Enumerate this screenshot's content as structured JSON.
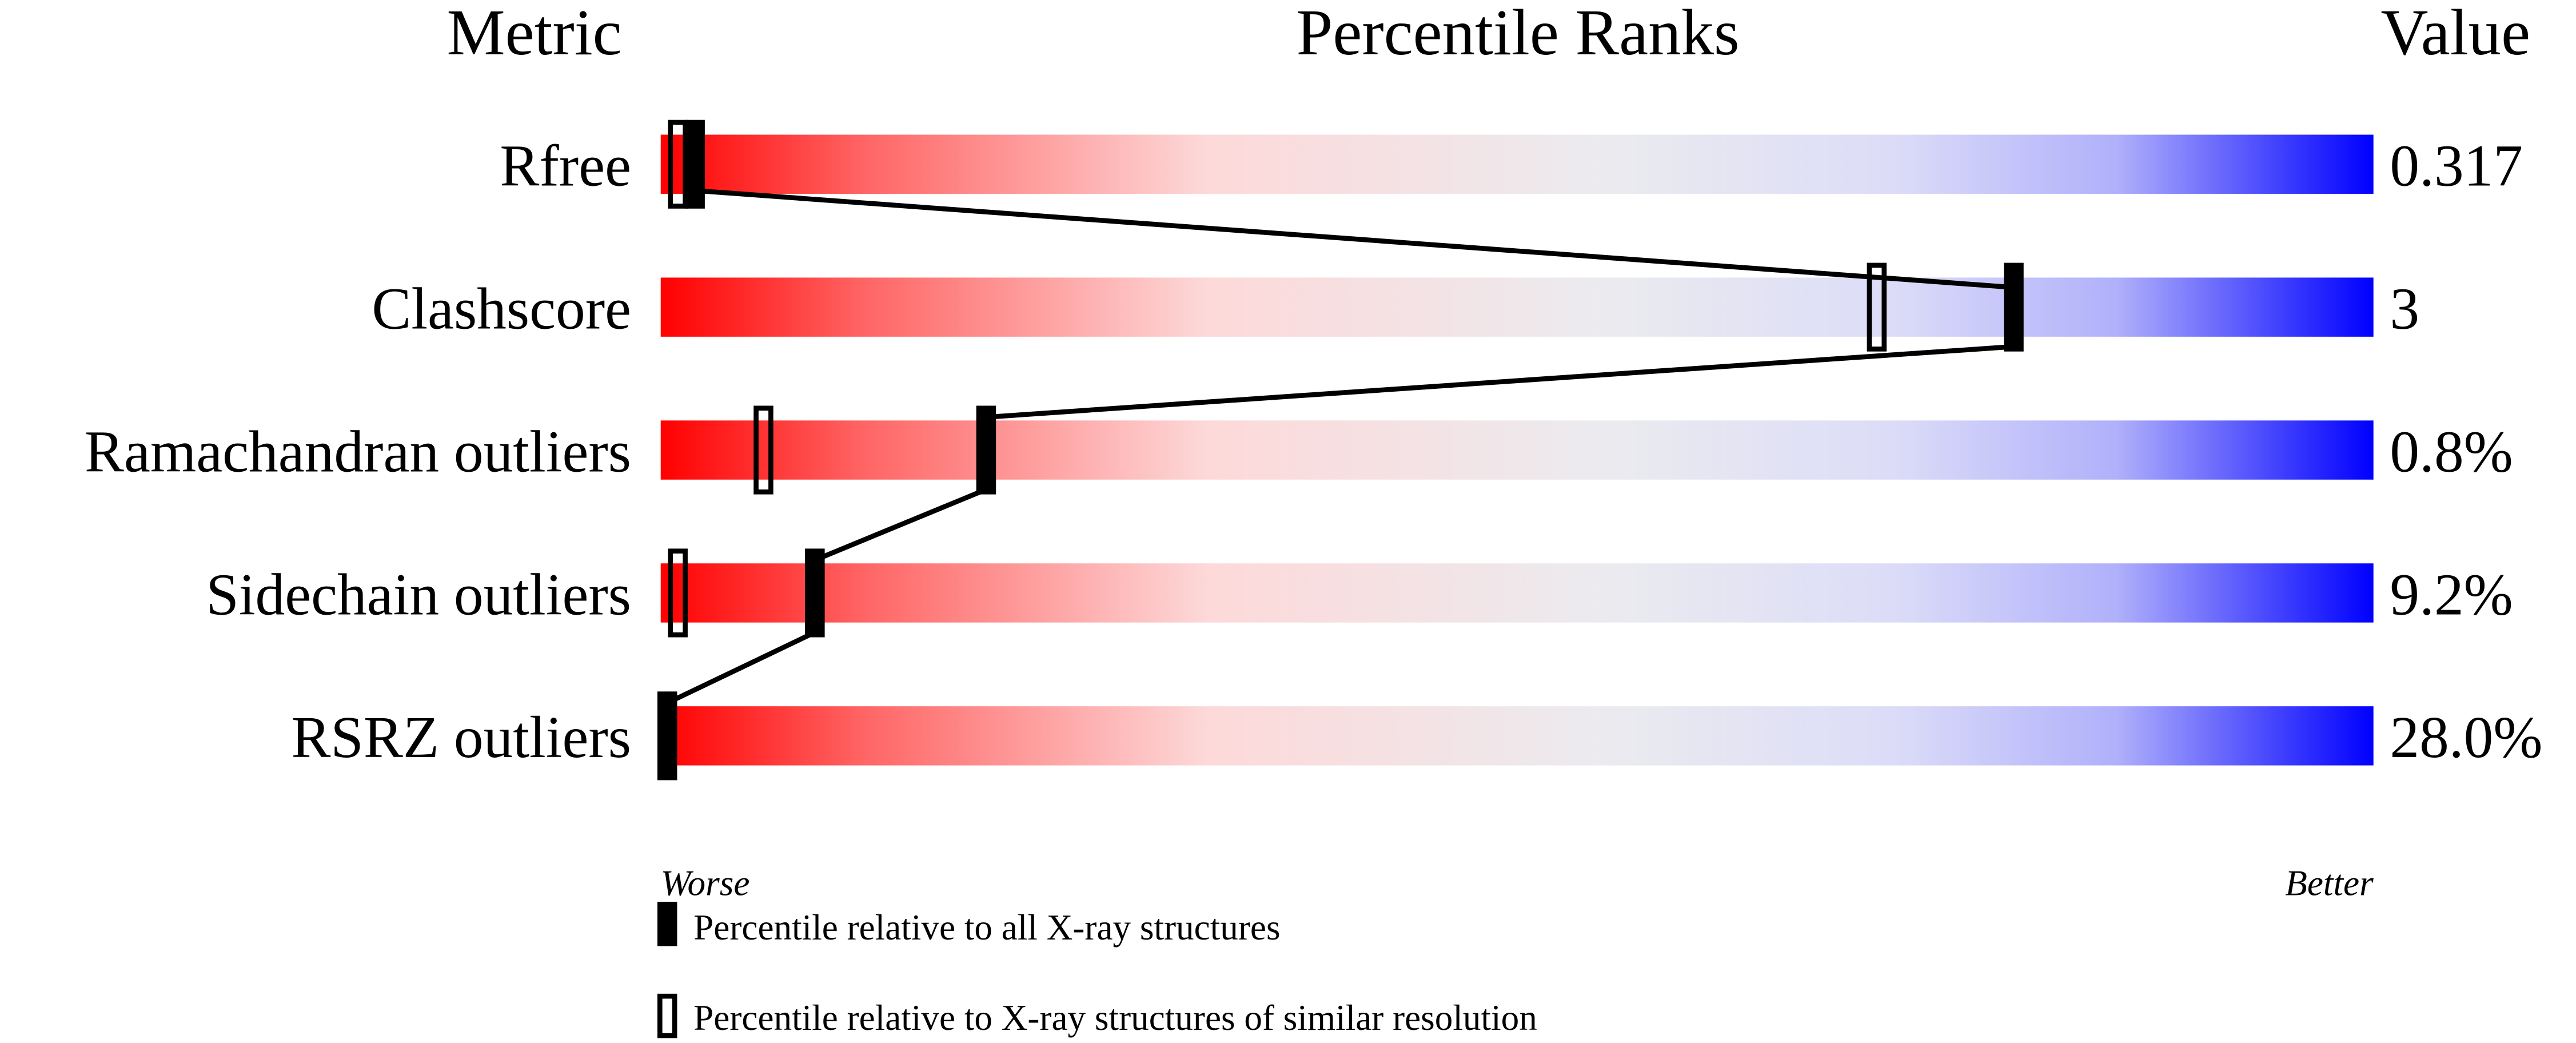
{
  "chart_data": {
    "type": "percentile-slider",
    "headers": {
      "metric": "Metric",
      "ranks": "Percentile Ranks",
      "value": "Value"
    },
    "xlim": [
      0,
      100
    ],
    "axis_labels": {
      "left": "Worse",
      "right": "Better"
    },
    "rows": [
      {
        "metric": "Rfree",
        "value": "0.317",
        "percentile_all": 2,
        "percentile_similar": 1
      },
      {
        "metric": "Clashscore",
        "value": "3",
        "percentile_all": 79,
        "percentile_similar": 71
      },
      {
        "metric": "Ramachandran outliers",
        "value": "0.8%",
        "percentile_all": 19,
        "percentile_similar": 6
      },
      {
        "metric": "Sidechain outliers",
        "value": "9.2%",
        "percentile_all": 9,
        "percentile_similar": 1
      },
      {
        "metric": "RSRZ outliers",
        "value": "28.0%",
        "percentile_all": 0,
        "percentile_similar": null
      }
    ],
    "legend": {
      "all": "Percentile relative to all X-ray structures",
      "similar": "Percentile relative to X-ray structures of similar resolution"
    },
    "colors": {
      "worse": "#ff0000",
      "middle": "#eeeeee",
      "better": "#0000ff",
      "marker": "#000000"
    }
  }
}
